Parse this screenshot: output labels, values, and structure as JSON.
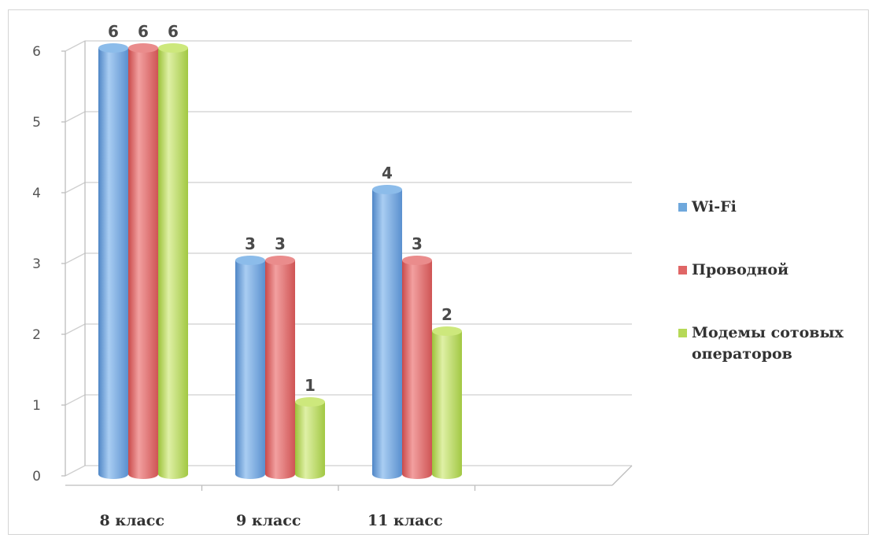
{
  "chart_data": {
    "type": "bar",
    "style": "3d-cylinder",
    "categories": [
      "8 класс",
      "9 класс",
      "11 класс"
    ],
    "series": [
      {
        "name": "Wi-Fi",
        "values": [
          6,
          3,
          4
        ],
        "color": "#6fa8dc"
      },
      {
        "name": "Проводной",
        "values": [
          6,
          3,
          3
        ],
        "color": "#e06666"
      },
      {
        "name": "Модемы сотовых операторов",
        "values": [
          6,
          1,
          2
        ],
        "color": "#b6d957"
      }
    ],
    "y_ticks": [
      "0",
      "1",
      "2",
      "3",
      "4",
      "5",
      "6"
    ],
    "ylim": [
      0,
      6
    ],
    "grid": true,
    "legend_position": "right",
    "data_labels": true
  }
}
